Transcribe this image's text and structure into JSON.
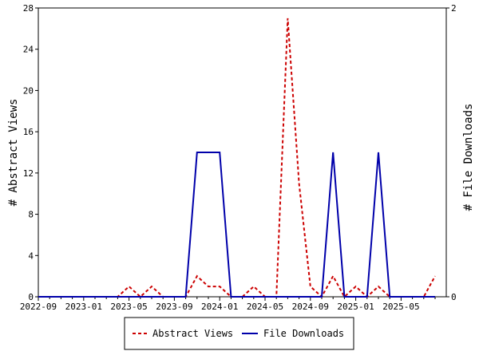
{
  "chart_data": {
    "type": "line",
    "xlabel": "",
    "y_left_label": "# Abstract Views",
    "y_right_label": "# File Downloads",
    "x_tick_labels": [
      "2022-09",
      "2023-01",
      "2023-05",
      "2023-09",
      "2024-01",
      "2024-05",
      "2024-09",
      "2025-01",
      "2025-05"
    ],
    "y_left_ticks": [
      0,
      4,
      8,
      12,
      16,
      20,
      24,
      28
    ],
    "y_right_ticks": [
      0,
      2
    ],
    "y_left_lim": [
      0,
      28
    ],
    "y_right_lim": [
      0,
      2
    ],
    "legend_position": "bottom-center",
    "grid": false,
    "x": [
      "2022-09",
      "2022-10",
      "2022-11",
      "2022-12",
      "2023-01",
      "2023-02",
      "2023-03",
      "2023-04",
      "2023-05",
      "2023-06",
      "2023-07",
      "2023-08",
      "2023-09",
      "2023-10",
      "2023-11",
      "2023-12",
      "2024-01",
      "2024-02",
      "2024-03",
      "2024-04",
      "2024-05",
      "2024-06",
      "2024-07",
      "2024-08",
      "2024-09",
      "2024-10",
      "2024-11",
      "2024-12",
      "2025-01",
      "2025-02",
      "2025-03",
      "2025-04",
      "2025-05",
      "2025-06",
      "2025-07",
      "2025-08"
    ],
    "series": [
      {
        "name": "Abstract Views",
        "axis": "left",
        "color": "#cc0000",
        "style": "dashed",
        "values": [
          0,
          0,
          0,
          0,
          0,
          0,
          0,
          0,
          1,
          0,
          1,
          0,
          0,
          0,
          2,
          1,
          1,
          0,
          0,
          1,
          0,
          0,
          27,
          11,
          1,
          0,
          2,
          0,
          1,
          0,
          1,
          0,
          0,
          0,
          0,
          2
        ]
      },
      {
        "name": "File Downloads",
        "axis": "right",
        "color": "#0000aa",
        "style": "solid",
        "values": [
          0,
          0,
          0,
          0,
          0,
          0,
          0,
          0,
          0,
          0,
          0,
          0,
          0,
          0,
          1,
          1,
          1,
          0,
          0,
          0,
          0,
          0,
          0,
          0,
          0,
          0,
          1,
          0,
          0,
          0,
          1,
          0,
          0,
          0,
          0,
          0
        ]
      }
    ]
  }
}
